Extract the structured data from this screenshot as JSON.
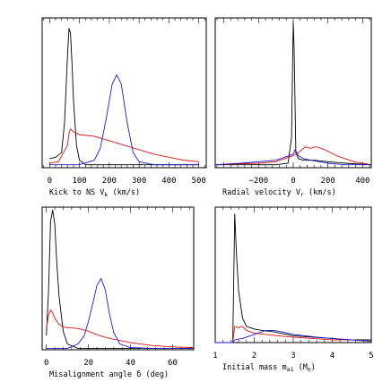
{
  "colors": {
    "black": "#000000",
    "red": "#dd1111",
    "blue": "#1a1acc"
  },
  "chart_data": [
    {
      "type": "line",
      "xlabel_parts": [
        "Kick to NS V",
        "k",
        " (km/s)"
      ],
      "xlim": [
        -25,
        525
      ],
      "ylim": [
        0,
        1
      ],
      "xticks": [
        0,
        100,
        200,
        300,
        400,
        500
      ],
      "xticklabels": [
        "0",
        "100",
        "200",
        "300",
        "400",
        "500"
      ],
      "series": [
        {
          "color": "black",
          "x": [
            0,
            20,
            40,
            50,
            60,
            65,
            70,
            75,
            80,
            90,
            100,
            120,
            150,
            200,
            300,
            400,
            500
          ],
          "y": [
            0.06,
            0.07,
            0.1,
            0.3,
            0.75,
            0.93,
            0.9,
            0.7,
            0.45,
            0.15,
            0.05,
            0.02,
            0.02,
            0.02,
            0.02,
            0.02,
            0.02
          ]
        },
        {
          "color": "red",
          "x": [
            0,
            30,
            60,
            65,
            70,
            80,
            100,
            150,
            200,
            250,
            300,
            350,
            400,
            450,
            500
          ],
          "y": [
            0.03,
            0.04,
            0.15,
            0.23,
            0.26,
            0.24,
            0.22,
            0.21,
            0.18,
            0.15,
            0.12,
            0.09,
            0.07,
            0.05,
            0.04
          ]
        },
        {
          "color": "blue",
          "x": [
            0,
            100,
            150,
            170,
            190,
            210,
            225,
            240,
            260,
            280,
            300,
            350,
            400,
            500
          ],
          "y": [
            0.02,
            0.02,
            0.05,
            0.13,
            0.33,
            0.56,
            0.62,
            0.56,
            0.3,
            0.1,
            0.04,
            0.02,
            0.02,
            0.02
          ]
        }
      ]
    },
    {
      "type": "line",
      "xlabel_parts": [
        "Radial velocity V",
        "r",
        " (km/s)"
      ],
      "xlim": [
        -450,
        450
      ],
      "ylim": [
        0,
        1
      ],
      "xticks": [
        -200,
        0,
        200,
        400
      ],
      "xticklabels": [
        "−200",
        "0",
        "200",
        "400"
      ],
      "series": [
        {
          "color": "black",
          "x": [
            -450,
            -100,
            -30,
            -10,
            0,
            5,
            15,
            30,
            60,
            120,
            200,
            300,
            450
          ],
          "y": [
            0.02,
            0.02,
            0.03,
            0.2,
            0.97,
            0.8,
            0.1,
            0.06,
            0.05,
            0.05,
            0.04,
            0.03,
            0.02
          ]
        },
        {
          "color": "red",
          "x": [
            -450,
            -200,
            -100,
            -50,
            0,
            40,
            70,
            100,
            130,
            160,
            200,
            250,
            300,
            350,
            400,
            450
          ],
          "y": [
            0.02,
            0.03,
            0.04,
            0.06,
            0.08,
            0.11,
            0.14,
            0.13,
            0.14,
            0.13,
            0.11,
            0.08,
            0.06,
            0.04,
            0.03,
            0.02
          ]
        },
        {
          "color": "blue",
          "x": [
            -450,
            -300,
            -200,
            -100,
            -50,
            0,
            10,
            30,
            60,
            100,
            150,
            200,
            300,
            450
          ],
          "y": [
            0.02,
            0.03,
            0.04,
            0.05,
            0.07,
            0.09,
            0.12,
            0.08,
            0.06,
            0.05,
            0.04,
            0.03,
            0.02,
            0.02
          ]
        }
      ]
    },
    {
      "type": "line",
      "xlabel_parts": [
        "Misalignment angle δ (deg)"
      ],
      "xlim": [
        -2,
        70
      ],
      "ylim": [
        0,
        1
      ],
      "xticks": [
        0,
        20,
        40,
        60
      ],
      "xticklabels": [
        "0",
        "20",
        "40",
        "60"
      ],
      "series": [
        {
          "color": "black",
          "x": [
            0,
            1,
            2,
            3,
            4,
            5,
            6,
            8,
            10,
            15,
            20,
            30,
            50,
            70
          ],
          "y": [
            0.1,
            0.4,
            0.9,
            0.98,
            0.88,
            0.6,
            0.38,
            0.13,
            0.04,
            0.01,
            0.01,
            0.01,
            0.01,
            0.01
          ]
        },
        {
          "color": "red",
          "x": [
            0,
            1,
            2,
            3,
            4,
            6,
            8,
            10,
            15,
            20,
            25,
            30,
            40,
            50,
            60,
            70
          ],
          "y": [
            0.15,
            0.24,
            0.28,
            0.26,
            0.22,
            0.18,
            0.16,
            0.155,
            0.15,
            0.13,
            0.1,
            0.08,
            0.05,
            0.03,
            0.02,
            0.015
          ]
        },
        {
          "color": "blue",
          "x": [
            0,
            10,
            15,
            18,
            20,
            22,
            24,
            26,
            28,
            30,
            32,
            35,
            40,
            50,
            70
          ],
          "y": [
            0.01,
            0.01,
            0.04,
            0.1,
            0.2,
            0.32,
            0.45,
            0.5,
            0.42,
            0.25,
            0.12,
            0.04,
            0.015,
            0.01,
            0.01
          ]
        }
      ]
    },
    {
      "type": "line",
      "xlabel_parts": [
        "Initial mass m",
        "a1",
        " (M",
        "⊙",
        ")"
      ],
      "xlim": [
        1,
        5
      ],
      "ylim": [
        0,
        1
      ],
      "xticks": [
        1,
        2,
        3,
        4,
        5
      ],
      "xticklabels": [
        "1",
        "2",
        "3",
        "4",
        "5"
      ],
      "series": [
        {
          "color": "black",
          "x": [
            1.0,
            1.45,
            1.5,
            1.55,
            1.6,
            1.7,
            1.8,
            1.9,
            2.0,
            2.2,
            2.5,
            3.0,
            3.5,
            4.0,
            4.5,
            5.0
          ],
          "y": [
            0.0,
            0.0,
            0.95,
            0.62,
            0.38,
            0.18,
            0.12,
            0.11,
            0.1,
            0.09,
            0.08,
            0.05,
            0.04,
            0.03,
            0.02,
            0.02
          ]
        },
        {
          "color": "red",
          "x": [
            1.0,
            1.45,
            1.5,
            1.6,
            1.7,
            1.8,
            2.0,
            2.3,
            2.6,
            3.0,
            3.5,
            4.0,
            4.5,
            5.0
          ],
          "y": [
            0.0,
            0.0,
            0.12,
            0.11,
            0.12,
            0.09,
            0.07,
            0.06,
            0.05,
            0.04,
            0.03,
            0.02,
            0.02,
            0.01
          ]
        },
        {
          "color": "blue",
          "x": [
            1.0,
            1.45,
            1.5,
            1.7,
            1.9,
            2.1,
            2.3,
            2.5,
            2.7,
            3.0,
            3.3,
            3.6,
            4.0,
            4.5,
            5.0
          ],
          "y": [
            0.0,
            0.0,
            0.02,
            0.03,
            0.05,
            0.07,
            0.09,
            0.09,
            0.08,
            0.06,
            0.05,
            0.04,
            0.03,
            0.02,
            0.01
          ]
        }
      ]
    }
  ]
}
